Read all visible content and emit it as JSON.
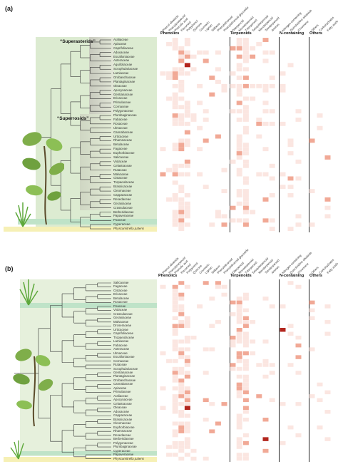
{
  "panels": [
    {
      "label": "(a)",
      "clades": {
        "upper": "“Superasterids”",
        "lower": "“Superrosids”"
      },
      "taxa": [
        "Araliaceae",
        "Apiaceae",
        "Caprifoliaceae",
        "Adoxaceae",
        "Escalloniaceae",
        "Asteraceae",
        "Aquifoliaceae",
        "Scrophulariaceae",
        "Lamiaceae",
        "Orobanchaceae",
        "Plantaginaceae",
        "Oleaceae",
        "Apocynaceae",
        "Gentianaceae",
        "Ericaceae",
        "Primulaceae",
        "Cornaceae",
        "Polygonaceae",
        "Plumbaginaceae",
        "Fabaceae",
        "Rosaceae",
        "Ulmaceae",
        "Cannabaceae",
        "Urticaceae",
        "Rhamnaceae",
        "Betulaceae",
        "Fagaceae",
        "Euphorbiaceae",
        "Salicaceae",
        "Violaceae",
        "Celastraceae",
        "Rutaceae",
        "Malvaceae",
        "Cistaceae",
        "Tropaeolaceae",
        "Brassicaceae",
        "Cleomaceae",
        "Capparaceae",
        "Resedaceae",
        "Geraniaceae",
        "Crassulaceae",
        "Berberidaceae",
        "Papaveraceae",
        "Poaceae",
        "Cyperaceae",
        "Physcomitrella patens"
      ]
    },
    {
      "label": "(b)",
      "taxa": [
        "Salicaceae",
        "Fagaceae",
        "Cistaceae",
        "Ericaceae",
        "Betulaceae",
        "Rosaceae",
        "Poaceae",
        "Violaceae",
        "Crassulaceae",
        "Geraniaceae",
        "Malvaceae",
        "Droseraceae",
        "Urticaceae",
        "Caprifoliaceae",
        "Tropaeolaceae",
        "Lamiaceae",
        "Fabaceae",
        "Asteraceae",
        "Ulmaceae",
        "Escalloniaceae",
        "Cornaceae",
        "Rutaceae",
        "Scrophulariaceae",
        "Gentianaceae",
        "Plantaginaceae",
        "Orobanchaceae",
        "Cannabaceae",
        "Apiaceae",
        "Primulaceae",
        "Araliaceae",
        "Apocynaceae",
        "Celastraceae",
        "Oleaceae",
        "Adoxaceae",
        "Capparaceae",
        "Brassicaceae",
        "Cleomaceae",
        "Euphorbiaceae",
        "Rhamnaceae",
        "Resedaceae",
        "Berberidaceae",
        "Polygonaceae",
        "Plumbaginaceae",
        "Cyperaceae",
        "Papaveraceae",
        "Physcomitrella patens"
      ]
    }
  ],
  "compound_columns": [
    "Phenol alkaloids",
    "Phenylpropanoid",
    "Phenolic acid",
    "Flavonoid",
    "Polyphenol",
    "Quinone",
    "Coumarin",
    "Lignan",
    "Stilbene",
    "Phenylethanoid",
    "Phenylethanoid glycoside",
    "Diterpenoid",
    "Monoterpenoid",
    "Triterpenoid",
    "Sesquiterpenoid",
    "Meroterpenoid",
    "Tetraterpenoid",
    "Amines",
    "Nitrogen-containing",
    "Quinolizidine alkaloids",
    "Chromone",
    "Others",
    "Carbohydrates",
    "Fatty acids"
  ],
  "categories": {
    "phenolics": "Phenolics",
    "terpenoids": "Terpenoids",
    "n_containing": "N-containing",
    "others": "Others"
  },
  "colors": {
    "heat_low": "#fbe6e1",
    "heat_mid": "#f1a996",
    "heat_high": "#b3261e",
    "clade_green": "#dcebd1",
    "highlight_green": "#bfe3c8",
    "highlight_yellow": "#f6f0b5",
    "superasterid_grey": "#b9b9ae"
  }
}
